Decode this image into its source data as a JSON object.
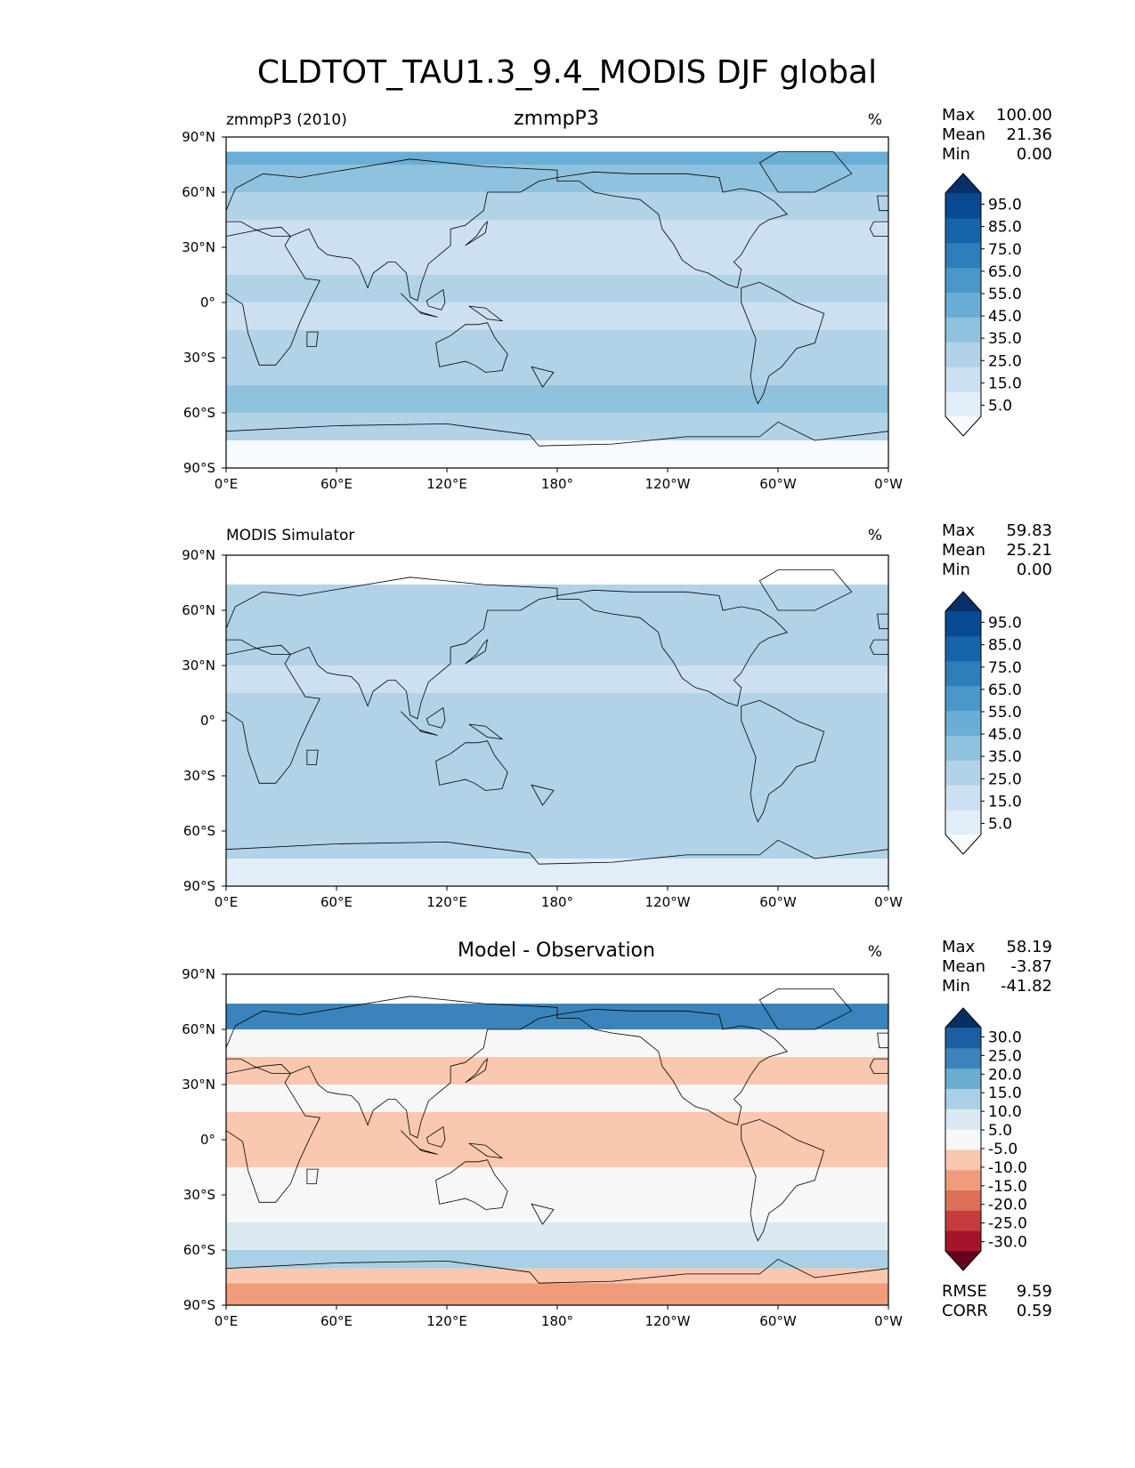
{
  "title": "CLDTOT_TAU1.3_9.4_MODIS DJF global",
  "colors": {
    "blues": [
      "#f7fbff",
      "#e1edf8",
      "#cde0f1",
      "#b2d2e8",
      "#8fc2de",
      "#6aaed6",
      "#4a98c9",
      "#2e7ebc",
      "#1764ab",
      "#084a91",
      "#08306b"
    ],
    "diff": [
      "#67001f",
      "#a51429",
      "#c43c3c",
      "#dc6f58",
      "#f09c7b",
      "#fac8af",
      "#f7f7f7",
      "#dbeaf2",
      "#a9d0e5",
      "#6bacd1",
      "#3a84bb",
      "#1b5ea1",
      "#053061"
    ],
    "land": "#ffffff",
    "coast": "#000000"
  },
  "axes": {
    "lat_ticks": [
      "90°N",
      "60°N",
      "30°N",
      "0°",
      "30°S",
      "60°S",
      "90°S"
    ],
    "lon_ticks": [
      "0°E",
      "60°E",
      "120°E",
      "180°",
      "120°W",
      "60°W",
      "0°W"
    ]
  },
  "chart_data": [
    {
      "type": "heatmap",
      "title": "zmmpP3",
      "left_label": "zmmpP3 (2010)",
      "units": "%",
      "stats": {
        "labels": [
          "Max",
          "Mean",
          "Min"
        ],
        "values": [
          "100.00",
          "21.36",
          "0.00"
        ]
      },
      "colorbar": {
        "ticks": [
          "95.0",
          "85.0",
          "75.0",
          "65.0",
          "55.0",
          "45.0",
          "35.0",
          "25.0",
          "15.0",
          "5.0"
        ],
        "levels": [
          0,
          5,
          15,
          25,
          35,
          45,
          55,
          65,
          75,
          85,
          95,
          100
        ]
      },
      "field": {
        "lat_bands": [
          -90,
          -75,
          -60,
          -45,
          -30,
          -15,
          0,
          15,
          30,
          45,
          60,
          75,
          82
        ],
        "band_values": [
          3,
          25,
          42,
          32,
          28,
          24,
          26,
          22,
          24,
          30,
          35,
          50
        ]
      }
    },
    {
      "type": "heatmap",
      "title": "",
      "left_label": "MODIS Simulator",
      "units": "%",
      "stats": {
        "labels": [
          "Max",
          "Mean",
          "Min"
        ],
        "values": [
          "59.83",
          "25.21",
          "0.00"
        ]
      },
      "colorbar": {
        "ticks": [
          "95.0",
          "85.0",
          "75.0",
          "65.0",
          "55.0",
          "45.0",
          "35.0",
          "25.0",
          "15.0",
          "5.0"
        ],
        "levels": [
          0,
          5,
          15,
          25,
          35,
          45,
          55,
          65,
          75,
          85,
          95,
          100
        ]
      },
      "field": {
        "lat_bands": [
          -90,
          -75,
          -60,
          -45,
          -30,
          -15,
          0,
          15,
          30,
          45,
          60,
          74
        ],
        "band_values": [
          12,
          28,
          30,
          28,
          26,
          28,
          27,
          24,
          30,
          30,
          32
        ]
      }
    },
    {
      "type": "heatmap",
      "title": "Model - Observation",
      "left_label": "",
      "units": "%",
      "stats": {
        "labels": [
          "Max",
          "Mean",
          "Min"
        ],
        "values": [
          "58.19",
          "-3.87",
          "-41.82"
        ]
      },
      "colorbar": {
        "ticks": [
          "30.0",
          "25.0",
          "20.0",
          "15.0",
          "10.0",
          "5.0",
          "-5.0",
          "-10.0",
          "-15.0",
          "-20.0",
          "-25.0",
          "-30.0"
        ],
        "levels": [
          -35,
          -30,
          -25,
          -20,
          -15,
          -10,
          -5,
          5,
          10,
          15,
          20,
          25,
          30,
          35
        ]
      },
      "extra_stats": {
        "labels": [
          "RMSE",
          "CORR"
        ],
        "values": [
          "9.59",
          "0.59"
        ]
      },
      "field": {
        "lat_bands": [
          -90,
          -78,
          -70,
          -60,
          -45,
          -30,
          -15,
          0,
          15,
          30,
          45,
          60,
          74
        ],
        "band_values": [
          -12,
          -6,
          12,
          8,
          0,
          -4,
          -10,
          -8,
          0,
          -6,
          -4,
          20
        ]
      }
    }
  ]
}
